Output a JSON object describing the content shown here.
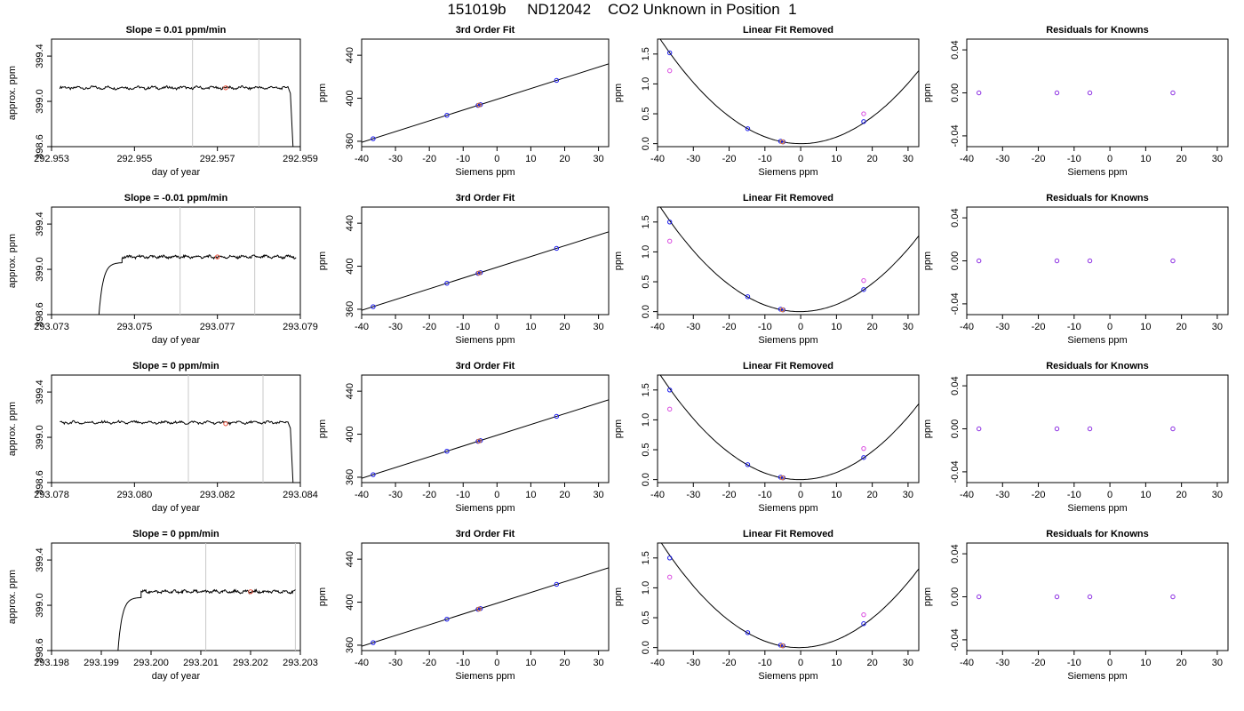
{
  "page": {
    "title": "151019b     ND12042    CO2 Unknown in Position  1"
  },
  "chart_data": [
    {
      "row": 1,
      "type": "line",
      "title": "Slope =  0.01  ppm/min",
      "xlabel": "day of year",
      "ylabel": "approx. ppm",
      "xticks": [
        "292.953",
        "292.955",
        "292.957",
        "292.959"
      ],
      "yticks": [
        "398.6",
        "399.0",
        "399.4"
      ],
      "xlim": [
        292.953,
        292.959
      ],
      "ylim": [
        398.6,
        399.55
      ],
      "vlines": [
        292.9564,
        292.958
      ],
      "trace": {
        "start": 292.9532,
        "end": 292.9587,
        "level": 399.12,
        "rise_start": null,
        "rise_end": null,
        "drop_end": 292.95885
      },
      "marker": {
        "x": 292.9572,
        "y": 399.12
      }
    },
    {
      "row": 1,
      "type": "line",
      "title": "3rd Order Fit",
      "xlabel": "Siemens ppm",
      "ylabel": "ppm",
      "xticks": [
        "-40",
        "-30",
        "-20",
        "-10",
        "0",
        "10",
        "20",
        "30"
      ],
      "yticks": [
        "360",
        "400",
        "440"
      ],
      "xlim": [
        -40,
        33
      ],
      "ylim": [
        355,
        455
      ],
      "line": {
        "slope": 1.0,
        "intercept": 399
      },
      "points": [
        {
          "x": -36.6,
          "y": 362.4
        },
        {
          "x": -14.8,
          "y": 384.2
        },
        {
          "x": -5.6,
          "y": 393.4
        },
        {
          "x": -4.9,
          "y": 394.1
        },
        {
          "x": 17.6,
          "y": 416.6
        }
      ]
    },
    {
      "row": 1,
      "type": "line",
      "title": "Linear Fit Removed",
      "xlabel": "Siemens ppm",
      "ylabel": "ppm",
      "xticks": [
        "-40",
        "-30",
        "-20",
        "-10",
        "0",
        "10",
        "20",
        "30"
      ],
      "yticks": [
        "0.0",
        "0.5",
        "1.0",
        "1.5"
      ],
      "xlim": [
        -40,
        33
      ],
      "ylim": [
        -0.05,
        1.75
      ],
      "curve": {
        "a": 0.00113,
        "b": -0.0002,
        "c": 0.0
      },
      "points": [
        {
          "x": -36.6,
          "y": 1.52
        },
        {
          "x": -14.8,
          "y": 0.25
        },
        {
          "x": -5.6,
          "y": 0.04
        },
        {
          "x": -4.9,
          "y": 0.03
        },
        {
          "x": 17.6,
          "y": 0.37
        }
      ],
      "knowns": [
        {
          "x": -36.6,
          "y": 1.22
        },
        {
          "x": 17.6,
          "y": 0.5
        }
      ],
      "unknown": {
        "x": -5.1,
        "y": 0.03
      }
    },
    {
      "row": 1,
      "type": "scatter",
      "title": "Residuals for Knowns",
      "xlabel": "Siemens ppm",
      "ylabel": "ppm",
      "xticks": [
        "-40",
        "-30",
        "-20",
        "-10",
        "0",
        "10",
        "20",
        "30"
      ],
      "yticks": [
        "-0.04",
        "0.00",
        "0.04"
      ],
      "xlim": [
        -40,
        33
      ],
      "ylim": [
        -0.05,
        0.05
      ],
      "points": [
        {
          "x": -36.6,
          "y": 0
        },
        {
          "x": -14.8,
          "y": 0
        },
        {
          "x": -5.6,
          "y": 0
        },
        {
          "x": 17.6,
          "y": 0
        }
      ]
    },
    {
      "row": 2,
      "type": "line",
      "title": "Slope =  -0.01  ppm/min",
      "xlabel": "day of year",
      "ylabel": "approx. ppm",
      "xticks": [
        "293.073",
        "293.075",
        "293.077",
        "293.079"
      ],
      "yticks": [
        "398.6",
        "399.0",
        "399.4"
      ],
      "xlim": [
        293.073,
        293.079
      ],
      "ylim": [
        398.6,
        399.55
      ],
      "vlines": [
        293.0761,
        293.0779
      ],
      "trace": {
        "start": 293.0741,
        "end": 293.0789,
        "level": 399.11,
        "rise_start": 293.0741,
        "rise_end": 293.0747,
        "drop_end": null
      },
      "marker": {
        "x": 293.077,
        "y": 399.11
      }
    },
    {
      "row": 2,
      "type": "line",
      "title": "3rd Order Fit",
      "xlabel": "Siemens ppm",
      "ylabel": "ppm",
      "xticks": [
        "-40",
        "-30",
        "-20",
        "-10",
        "0",
        "10",
        "20",
        "30"
      ],
      "yticks": [
        "360",
        "400",
        "440"
      ],
      "xlim": [
        -40,
        33
      ],
      "ylim": [
        355,
        455
      ],
      "line": {
        "slope": 1.0,
        "intercept": 399
      },
      "points": [
        {
          "x": -36.6,
          "y": 362.4
        },
        {
          "x": -14.8,
          "y": 384.2
        },
        {
          "x": -5.6,
          "y": 393.4
        },
        {
          "x": -4.9,
          "y": 394.1
        },
        {
          "x": 17.6,
          "y": 416.6
        }
      ]
    },
    {
      "row": 2,
      "type": "line",
      "title": "Linear Fit Removed",
      "xlabel": "Siemens ppm",
      "ylabel": "ppm",
      "xticks": [
        "-40",
        "-30",
        "-20",
        "-10",
        "0",
        "10",
        "20",
        "30"
      ],
      "yticks": [
        "0.0",
        "0.5",
        "1.0",
        "1.5"
      ],
      "xlim": [
        -40,
        33
      ],
      "ylim": [
        -0.05,
        1.75
      ],
      "curve": {
        "a": 0.00115,
        "b": 0.0005,
        "c": 0.0
      },
      "points": [
        {
          "x": -36.6,
          "y": 1.5
        },
        {
          "x": -14.8,
          "y": 0.25
        },
        {
          "x": -5.6,
          "y": 0.04
        },
        {
          "x": -4.9,
          "y": 0.03
        },
        {
          "x": 17.6,
          "y": 0.37
        }
      ],
      "knowns": [
        {
          "x": -36.6,
          "y": 1.18
        },
        {
          "x": 17.6,
          "y": 0.52
        }
      ],
      "unknown": {
        "x": -5.1,
        "y": 0.03
      }
    },
    {
      "row": 2,
      "type": "scatter",
      "title": "Residuals for Knowns",
      "xlabel": "Siemens ppm",
      "ylabel": "ppm",
      "xticks": [
        "-40",
        "-30",
        "-20",
        "-10",
        "0",
        "10",
        "20",
        "30"
      ],
      "yticks": [
        "-0.04",
        "0.00",
        "0.04"
      ],
      "xlim": [
        -40,
        33
      ],
      "ylim": [
        -0.05,
        0.05
      ],
      "points": [
        {
          "x": -36.6,
          "y": 0
        },
        {
          "x": -14.8,
          "y": 0
        },
        {
          "x": -5.6,
          "y": 0
        },
        {
          "x": 17.6,
          "y": 0
        }
      ]
    },
    {
      "row": 3,
      "type": "line",
      "title": "Slope =  0  ppm/min",
      "xlabel": "day of year",
      "ylabel": "approx. ppm",
      "xticks": [
        "293.078",
        "293.080",
        "293.082",
        "293.084"
      ],
      "yticks": [
        "398.6",
        "399.0",
        "399.4"
      ],
      "xlim": [
        293.078,
        293.084
      ],
      "ylim": [
        398.6,
        399.55
      ],
      "vlines": [
        293.0813,
        293.0831
      ],
      "trace": {
        "start": 293.0782,
        "end": 293.0837,
        "level": 399.13,
        "rise_start": null,
        "rise_end": null,
        "drop_end": 293.08385
      },
      "marker": {
        "x": 293.0822,
        "y": 399.12
      }
    },
    {
      "row": 3,
      "type": "line",
      "title": "3rd Order Fit",
      "xlabel": "Siemens ppm",
      "ylabel": "ppm",
      "xticks": [
        "-40",
        "-30",
        "-20",
        "-10",
        "0",
        "10",
        "20",
        "30"
      ],
      "yticks": [
        "360",
        "400",
        "440"
      ],
      "xlim": [
        -40,
        33
      ],
      "ylim": [
        355,
        455
      ],
      "line": {
        "slope": 1.0,
        "intercept": 399
      },
      "points": [
        {
          "x": -36.6,
          "y": 362.4
        },
        {
          "x": -14.8,
          "y": 384.2
        },
        {
          "x": -5.6,
          "y": 393.4
        },
        {
          "x": -4.9,
          "y": 394.1
        },
        {
          "x": 17.6,
          "y": 416.6
        }
      ]
    },
    {
      "row": 3,
      "type": "line",
      "title": "Linear Fit Removed",
      "xlabel": "Siemens ppm",
      "ylabel": "ppm",
      "xticks": [
        "-40",
        "-30",
        "-20",
        "-10",
        "0",
        "10",
        "20",
        "30"
      ],
      "yticks": [
        "0.0",
        "0.5",
        "1.0",
        "1.5"
      ],
      "xlim": [
        -40,
        33
      ],
      "ylim": [
        -0.05,
        1.75
      ],
      "curve": {
        "a": 0.00115,
        "b": 0.0005,
        "c": 0.0
      },
      "points": [
        {
          "x": -36.6,
          "y": 1.5
        },
        {
          "x": -14.8,
          "y": 0.25
        },
        {
          "x": -5.6,
          "y": 0.04
        },
        {
          "x": -4.9,
          "y": 0.03
        },
        {
          "x": 17.6,
          "y": 0.37
        }
      ],
      "knowns": [
        {
          "x": -36.6,
          "y": 1.18
        },
        {
          "x": 17.6,
          "y": 0.52
        }
      ],
      "unknown": {
        "x": -5.1,
        "y": 0.03
      }
    },
    {
      "row": 3,
      "type": "scatter",
      "title": "Residuals for Knowns",
      "xlabel": "Siemens ppm",
      "ylabel": "ppm",
      "xticks": [
        "-40",
        "-30",
        "-20",
        "-10",
        "0",
        "10",
        "20",
        "30"
      ],
      "yticks": [
        "-0.04",
        "0.00",
        "0.04"
      ],
      "xlim": [
        -40,
        33
      ],
      "ylim": [
        -0.05,
        0.05
      ],
      "points": [
        {
          "x": -36.6,
          "y": 0
        },
        {
          "x": -14.8,
          "y": 0
        },
        {
          "x": -5.6,
          "y": 0
        },
        {
          "x": 17.6,
          "y": 0
        }
      ]
    },
    {
      "row": 4,
      "type": "line",
      "title": "Slope =  0  ppm/min",
      "xlabel": "day of year",
      "ylabel": "approx. ppm",
      "xticks": [
        "293.198",
        "293.199",
        "293.200",
        "293.201",
        "293.202",
        "293.203"
      ],
      "yticks": [
        "398.6",
        "399.0",
        "399.4"
      ],
      "xlim": [
        293.198,
        293.203
      ],
      "ylim": [
        398.6,
        399.55
      ],
      "vlines": [
        293.2011,
        293.2029
      ],
      "trace": {
        "start": 293.1993,
        "end": 293.2029,
        "level": 399.12,
        "rise_start": 293.1993,
        "rise_end": 293.1998,
        "drop_end": null
      },
      "marker": {
        "x": 293.202,
        "y": 399.12
      }
    },
    {
      "row": 4,
      "type": "line",
      "title": "3rd Order Fit",
      "xlabel": "Siemens ppm",
      "ylabel": "ppm",
      "xticks": [
        "-40",
        "-30",
        "-20",
        "-10",
        "0",
        "10",
        "20",
        "30"
      ],
      "yticks": [
        "360",
        "400",
        "440"
      ],
      "xlim": [
        -40,
        33
      ],
      "ylim": [
        355,
        455
      ],
      "line": {
        "slope": 1.0,
        "intercept": 399
      },
      "points": [
        {
          "x": -36.6,
          "y": 362.4
        },
        {
          "x": -14.8,
          "y": 384.2
        },
        {
          "x": -5.6,
          "y": 393.4
        },
        {
          "x": -4.9,
          "y": 394.1
        },
        {
          "x": 17.6,
          "y": 416.6
        }
      ]
    },
    {
      "row": 4,
      "type": "line",
      "title": "Linear Fit Removed",
      "xlabel": "Siemens ppm",
      "ylabel": "ppm",
      "xticks": [
        "-40",
        "-30",
        "-20",
        "-10",
        "0",
        "10",
        "20",
        "30"
      ],
      "yticks": [
        "0.0",
        "0.5",
        "1.0",
        "1.5"
      ],
      "xlim": [
        -40,
        33
      ],
      "ylim": [
        -0.05,
        1.75
      ],
      "curve": {
        "a": 0.00118,
        "b": 0.001,
        "c": 0.0
      },
      "points": [
        {
          "x": -36.6,
          "y": 1.5
        },
        {
          "x": -14.8,
          "y": 0.25
        },
        {
          "x": -5.6,
          "y": 0.04
        },
        {
          "x": -4.9,
          "y": 0.03
        },
        {
          "x": 17.6,
          "y": 0.4
        }
      ],
      "knowns": [
        {
          "x": -36.6,
          "y": 1.18
        },
        {
          "x": 17.6,
          "y": 0.55
        }
      ],
      "unknown": {
        "x": -5.1,
        "y": 0.03
      }
    },
    {
      "row": 4,
      "type": "scatter",
      "title": "Residuals for Knowns",
      "xlabel": "Siemens ppm",
      "ylabel": "ppm",
      "xticks": [
        "-40",
        "-30",
        "-20",
        "-10",
        "0",
        "10",
        "20",
        "30"
      ],
      "yticks": [
        "-0.04",
        "0.00",
        "0.04"
      ],
      "xlim": [
        -40,
        33
      ],
      "ylim": [
        -0.05,
        0.05
      ],
      "points": [
        {
          "x": -36.6,
          "y": 0
        },
        {
          "x": -14.8,
          "y": 0
        },
        {
          "x": -5.6,
          "y": 0
        },
        {
          "x": 17.6,
          "y": 0
        }
      ]
    }
  ],
  "colors": {
    "trace": "#000000",
    "vline": "#c8c8c8",
    "marker": "#e8503a",
    "fit_point": "#1a1aee",
    "known_point": "#d94be0",
    "unknown_point": "#f08020",
    "residual_point": "#8a2be2"
  }
}
